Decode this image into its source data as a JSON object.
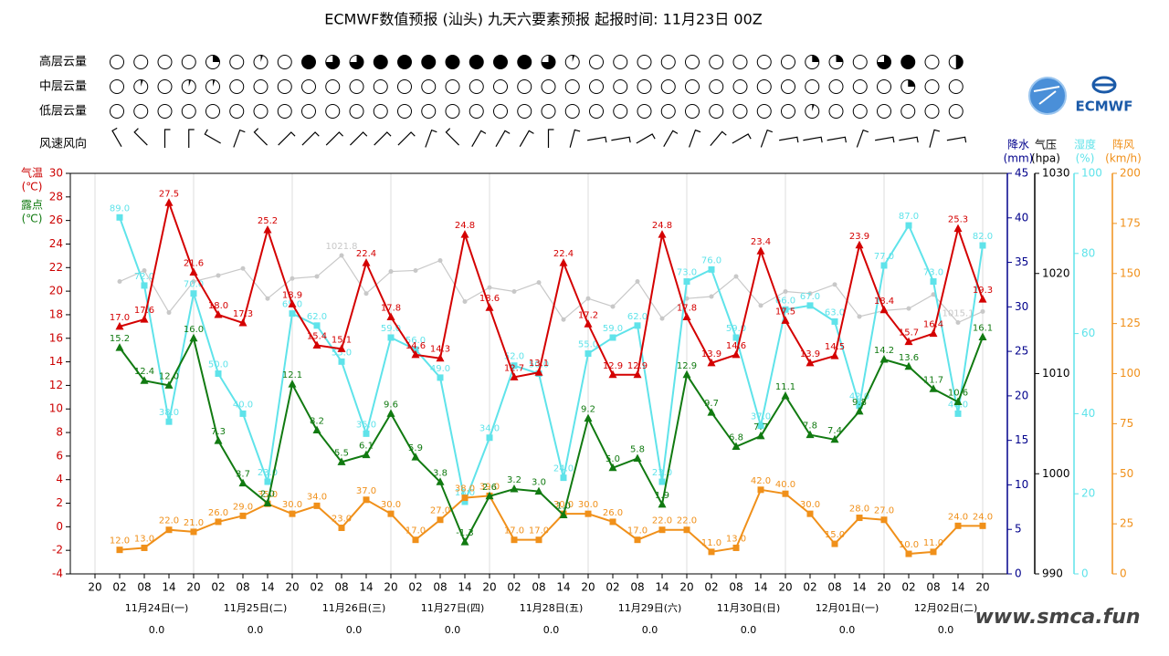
{
  "chart_data": {
    "type": "line",
    "title": "ECMWF数值预报 (汕头) 九天六要素预报 起报时间: 11月23日 00Z",
    "x": [
      "20",
      "02",
      "08",
      "14",
      "20",
      "02",
      "08",
      "14",
      "20",
      "02",
      "08",
      "14",
      "20",
      "02",
      "08",
      "14",
      "20",
      "02",
      "08",
      "14",
      "20",
      "02",
      "08",
      "14",
      "20",
      "02",
      "08",
      "14",
      "20",
      "02",
      "08",
      "14",
      "20",
      "02",
      "08",
      "14",
      "20"
    ],
    "ylim": [
      -4,
      30
    ],
    "yticks": [
      -4,
      -2,
      0,
      2,
      4,
      6,
      8,
      10,
      12,
      14,
      16,
      18,
      20,
      22,
      24,
      26,
      28,
      30
    ],
    "ylabel_temp": "气温",
    "ylabel_temp_unit": "(℃)",
    "ylabel_dew": "露点",
    "ylabel_dew_unit": "(℃)",
    "extra_axes": [
      {
        "title": "降水",
        "unit": "(mm)",
        "ylim": [
          0,
          45
        ],
        "yticks": [
          0,
          5,
          10,
          15,
          20,
          25,
          30,
          35,
          40,
          45
        ],
        "color": "#00008b"
      },
      {
        "title": "气压",
        "unit": "(hpa)",
        "ylim": [
          990,
          1030
        ],
        "yticks": [
          990,
          1000,
          1010,
          1020,
          1030
        ],
        "color": "#000000"
      },
      {
        "title": "湿度",
        "unit": "(%)",
        "ylim": [
          0,
          100
        ],
        "yticks": [
          0,
          20,
          40,
          60,
          80,
          100
        ],
        "color": "#5fe3ea"
      },
      {
        "title": "阵风",
        "unit": "(km/h)",
        "ylim": [
          0,
          200
        ],
        "yticks": [
          0,
          25,
          50,
          75,
          100,
          125,
          150,
          175,
          200
        ],
        "color": "#f0901a"
      }
    ],
    "series": [
      {
        "name": "气压",
        "axis": 1,
        "color": "#c8c8c8",
        "marker": "circle",
        "values": [
          null,
          1019.2,
          1020.3,
          1016.1,
          1019.2,
          1019.8,
          1020.5,
          1017.5,
          1019.5,
          1019.7,
          1021.8,
          1018.0,
          1020.2,
          1020.3,
          1021.3,
          1017.2,
          1018.6,
          1018.2,
          1019.1,
          1015.4,
          1017.5,
          1016.7,
          1019.2,
          1015.5,
          1017.5,
          1017.7,
          1019.7,
          1016.8,
          1018.2,
          1018.0,
          1018.9,
          1015.7,
          1016.3,
          1016.5,
          1017.9,
          1015.1,
          1016.2
        ],
        "value_labels": [
          null,
          null,
          null,
          null,
          null,
          null,
          null,
          null,
          null,
          null,
          "1021.8",
          null,
          null,
          null,
          null,
          null,
          null,
          null,
          null,
          null,
          null,
          null,
          null,
          null,
          null,
          null,
          null,
          null,
          null,
          null,
          null,
          null,
          null,
          null,
          null,
          "1015.1",
          null
        ]
      },
      {
        "name": "湿度",
        "axis": 2,
        "color": "#5fe3ea",
        "marker": "square",
        "values": [
          null,
          89,
          72,
          38,
          70,
          50,
          40,
          23,
          65,
          62,
          53,
          35,
          59,
          56,
          49,
          18,
          34,
          52,
          50,
          24,
          55,
          59,
          62,
          23,
          73,
          76,
          59,
          37,
          66,
          67,
          63,
          42,
          77,
          87,
          73,
          40,
          82
        ],
        "value_labels": [
          null,
          "89.0",
          "72.0",
          "38.0",
          "70.0",
          "50.0",
          "40.0",
          "23.0",
          "65.0",
          "62.0",
          "53.0",
          "35.0",
          "59.0",
          "56.0",
          "49.0",
          "18.0",
          "34.0",
          "52.0",
          "50.0",
          "24.0",
          "55.0",
          "59.0",
          "62.0",
          "23.0",
          "73.0",
          "76.0",
          "59.0",
          "37.0",
          "66.0",
          "67.0",
          "63.0",
          "42.0",
          "77.0",
          "87.0",
          "73.0",
          "40.0",
          "82.0"
        ]
      },
      {
        "name": "阵风",
        "axis": 3,
        "color": "#f0901a",
        "marker": "square",
        "values": [
          null,
          12,
          13,
          22,
          21,
          26,
          29,
          35,
          30,
          34,
          23,
          37,
          30,
          17,
          27,
          38,
          39,
          17,
          17,
          30,
          30,
          26,
          17,
          22,
          22,
          11,
          13,
          42,
          40,
          30,
          15,
          28,
          27,
          10,
          11,
          24,
          24
        ],
        "value_labels": [
          null,
          "12.0",
          "13.0",
          "22.0",
          "21.0",
          "26.0",
          "29.0",
          "35.0",
          "30.0",
          "34.0",
          "23.0",
          "37.0",
          "30.0",
          "17.0",
          "27.0",
          "38.0",
          "39.0",
          "17.0",
          "17.0",
          "30.0",
          "30.0",
          "26.0",
          "17.0",
          "22.0",
          "22.0",
          "11.0",
          "13.0",
          "42.0",
          "40.0",
          "30.0",
          "15.0",
          "28.0",
          "27.0",
          "10.0",
          "11.0",
          "24.0",
          "24.0"
        ]
      },
      {
        "name": "露点",
        "axis": "y",
        "color": "#117a11",
        "marker": "triangle",
        "values": [
          null,
          15.2,
          12.4,
          12.0,
          16.0,
          7.3,
          3.7,
          2.0,
          12.1,
          8.2,
          5.5,
          6.1,
          9.6,
          5.9,
          3.8,
          -1.3,
          2.6,
          3.2,
          3.0,
          1.0,
          9.2,
          5.0,
          5.8,
          1.9,
          12.9,
          9.7,
          6.8,
          7.7,
          11.1,
          7.8,
          7.4,
          9.8,
          14.2,
          13.6,
          11.7,
          10.6,
          16.1
        ],
        "value_labels": [
          null,
          "15.2",
          "12.4",
          "12.0",
          "16.0",
          "7.3",
          "3.7",
          "2.0",
          "12.1",
          "8.2",
          "5.5",
          "6.1",
          "9.6",
          "5.9",
          "3.8",
          "-1.3",
          "2.6",
          "3.2",
          "3.0",
          "1.0",
          "9.2",
          "5.0",
          "5.8",
          "1.9",
          "12.9",
          "9.7",
          "6.8",
          "7.7",
          "11.1",
          "7.8",
          "7.4",
          "9.8",
          "14.2",
          "13.6",
          "11.7",
          "10.6",
          "16.1"
        ]
      },
      {
        "name": "气温",
        "axis": "y",
        "color": "#d40000",
        "marker": "triangle",
        "values": [
          null,
          17.0,
          17.6,
          27.5,
          21.6,
          18.0,
          17.3,
          25.2,
          18.9,
          15.4,
          15.1,
          22.4,
          17.8,
          14.6,
          14.3,
          24.8,
          18.6,
          12.7,
          13.1,
          22.4,
          17.2,
          12.9,
          12.9,
          24.8,
          17.8,
          13.9,
          14.6,
          23.4,
          17.5,
          13.9,
          14.5,
          23.9,
          18.4,
          15.7,
          16.4,
          25.3,
          19.3
        ],
        "value_labels": [
          null,
          "17.0",
          "17.6",
          "27.5",
          "21.6",
          "18.0",
          "17.3",
          "25.2",
          "18.9",
          "15.4",
          "15.1",
          "22.4",
          "17.8",
          "14.6",
          "14.3",
          "24.8",
          "18.6",
          "12.7",
          "13.1",
          "22.4",
          "17.2",
          "12.9",
          "12.9",
          "24.8",
          "17.8",
          "13.9",
          "14.6",
          "23.4",
          "17.5",
          "13.9",
          "14.5",
          "23.9",
          "18.4",
          "15.7",
          "16.4",
          "25.3",
          "19.3"
        ]
      }
    ],
    "clouds": [
      {
        "name": "高层云量",
        "values": [
          0,
          0,
          0,
          0,
          0.25,
          0,
          0.05,
          0,
          1,
          0.75,
          0.75,
          1,
          1,
          1,
          1,
          1,
          1,
          1,
          0.75,
          0.05,
          0,
          0,
          0,
          0,
          0,
          0,
          0,
          0,
          0,
          0.25,
          0.25,
          0,
          0.75,
          1,
          0,
          0.5
        ]
      },
      {
        "name": "中层云量",
        "values": [
          0,
          0.05,
          0,
          0.05,
          0.05,
          0,
          0,
          0,
          0,
          0,
          0,
          0,
          0,
          0,
          0,
          0,
          0,
          0,
          0,
          0,
          0,
          0,
          0,
          0,
          0,
          0,
          0,
          0,
          0,
          0,
          0,
          0,
          0,
          0.25,
          0,
          0
        ]
      },
      {
        "name": "低层云量",
        "values": [
          0,
          0,
          0,
          0,
          0,
          0,
          0,
          0,
          0,
          0,
          0,
          0,
          0,
          0,
          0,
          0,
          0,
          0,
          0,
          0,
          0,
          0,
          0,
          0,
          0,
          0,
          0,
          0,
          0,
          0.05,
          0,
          0,
          0,
          0,
          0,
          0
        ]
      }
    ],
    "wind": {
      "name": "风速风向",
      "direction": [
        330,
        315,
        0,
        0,
        300,
        20,
        315,
        45,
        45,
        45,
        45,
        45,
        45,
        20,
        315,
        30,
        30,
        30,
        0,
        15,
        80,
        80,
        60,
        30,
        20,
        40,
        60,
        20,
        80,
        80,
        80,
        20,
        80,
        80,
        15,
        80
      ]
    },
    "days": [
      "11月24日(一)",
      "11月25日(二)",
      "11月26日(三)",
      "11月27日(四)",
      "11月28日(五)",
      "11月29日(六)",
      "11月30日(日)",
      "12月01日(一)",
      "12月02日(二)"
    ],
    "daily_precip": {
      "values": [
        0,
        0,
        0,
        0,
        0,
        0,
        0,
        0,
        0
      ],
      "value_labels": [
        "0.0",
        "0.0",
        "0.0",
        "0.0",
        "0.0",
        "0.0",
        "0.0",
        "0.0",
        "0.0"
      ]
    },
    "logo_text": "ECMWF",
    "watermark": "www.smca.fun"
  }
}
